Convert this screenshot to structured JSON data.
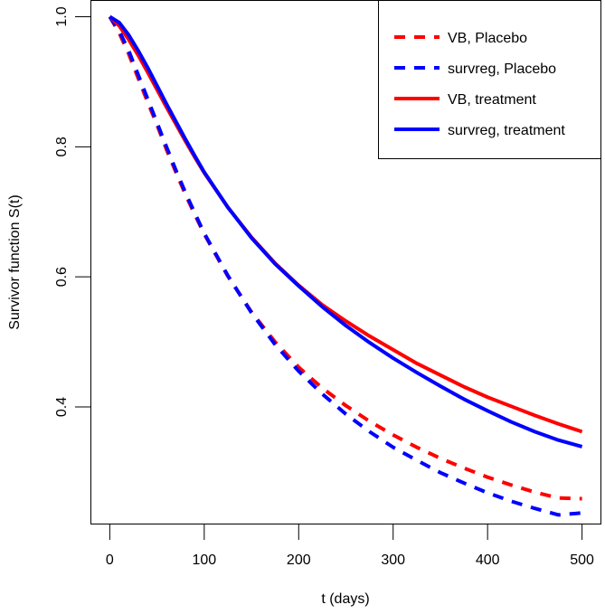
{
  "chart_data": {
    "type": "line",
    "title": "",
    "xlabel": "t (days)",
    "ylabel": "Survivor function S(t)",
    "xlim": [
      -20,
      520
    ],
    "ylim": [
      0.22,
      1.025
    ],
    "xticks": [
      0,
      100,
      200,
      300,
      400,
      500
    ],
    "xtick_labels": [
      "0",
      "100",
      "200",
      "300",
      "400",
      "500"
    ],
    "yticks": [
      0.4,
      0.6,
      0.8,
      1.0
    ],
    "ytick_labels": [
      "0.4",
      "0.6",
      "0.8",
      "1.0"
    ],
    "grid": false,
    "legend_position": "top-right",
    "x": [
      0,
      10,
      20,
      30,
      40,
      50,
      60,
      70,
      80,
      90,
      100,
      125,
      150,
      175,
      200,
      225,
      250,
      275,
      300,
      325,
      350,
      375,
      400,
      425,
      450,
      475,
      500
    ],
    "series": [
      {
        "name": "VB, Placebo",
        "color": "#ff0000",
        "dash": "dashed",
        "values": [
          1.0,
          0.975,
          0.943,
          0.906,
          0.869,
          0.834,
          0.796,
          0.761,
          0.727,
          0.696,
          0.666,
          0.601,
          0.546,
          0.5,
          0.461,
          0.429,
          0.402,
          0.378,
          0.357,
          0.338,
          0.321,
          0.306,
          0.292,
          0.28,
          0.269,
          0.26,
          0.259
        ]
      },
      {
        "name": "survreg, Placebo",
        "color": "#0000ff",
        "dash": "dashed",
        "values": [
          1.0,
          0.978,
          0.948,
          0.911,
          0.874,
          0.837,
          0.8,
          0.764,
          0.73,
          0.698,
          0.667,
          0.602,
          0.545,
          0.496,
          0.455,
          0.42,
          0.389,
          0.362,
          0.338,
          0.318,
          0.299,
          0.283,
          0.268,
          0.255,
          0.244,
          0.234,
          0.237
        ]
      },
      {
        "name": "VB, treatment",
        "color": "#ff0000",
        "dash": "solid",
        "values": [
          1.0,
          0.986,
          0.965,
          0.941,
          0.915,
          0.888,
          0.861,
          0.835,
          0.809,
          0.784,
          0.76,
          0.707,
          0.661,
          0.621,
          0.587,
          0.557,
          0.532,
          0.509,
          0.488,
          0.467,
          0.449,
          0.431,
          0.415,
          0.401,
          0.387,
          0.374,
          0.362
        ]
      },
      {
        "name": "survreg, treatment",
        "color": "#0000ff",
        "dash": "solid",
        "values": [
          1.0,
          0.991,
          0.972,
          0.948,
          0.922,
          0.894,
          0.866,
          0.839,
          0.812,
          0.786,
          0.761,
          0.707,
          0.66,
          0.62,
          0.586,
          0.554,
          0.525,
          0.499,
          0.475,
          0.453,
          0.432,
          0.412,
          0.394,
          0.377,
          0.362,
          0.349,
          0.339
        ]
      }
    ]
  }
}
